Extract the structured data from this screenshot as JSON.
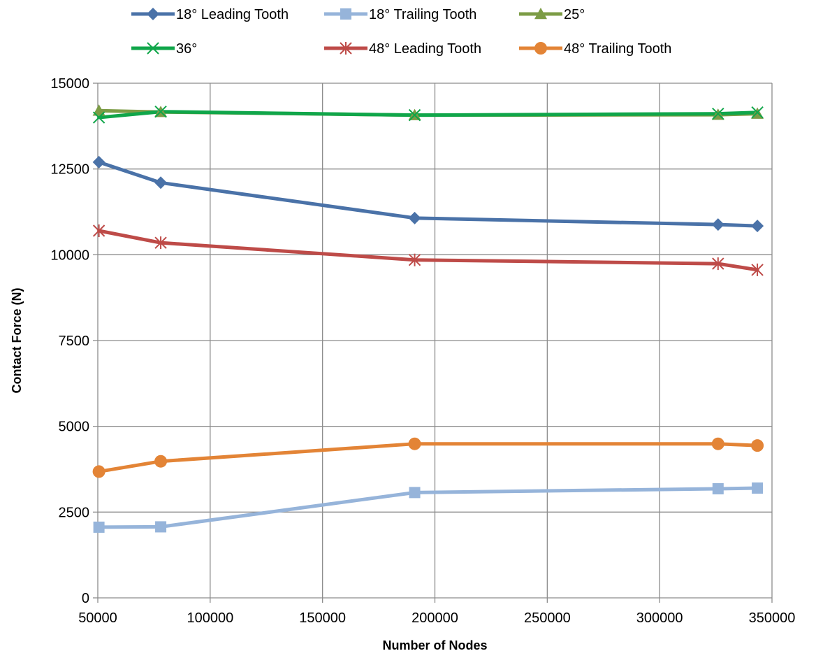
{
  "chart_data": {
    "type": "line",
    "xlabel": "Number of Nodes",
    "ylabel": "Contact Force (N)",
    "xlim": [
      50000,
      350000
    ],
    "ylim": [
      0,
      15000
    ],
    "xticks": [
      50000,
      100000,
      150000,
      200000,
      250000,
      300000,
      350000
    ],
    "yticks": [
      0,
      2500,
      5000,
      7500,
      10000,
      12500,
      15000
    ],
    "xtick_labels": [
      "50000",
      "100000",
      "150000",
      "200000",
      "250000",
      "300000",
      "350000"
    ],
    "ytick_labels": [
      "0",
      "2500",
      "5000",
      "7500",
      "10000",
      "12500",
      "15000"
    ],
    "grid": true,
    "legend_position": "top",
    "series": [
      {
        "name": "18° Leading Tooth",
        "color": "#4A72A8",
        "marker": "diamond",
        "x": [
          50500,
          78000,
          191000,
          326000,
          343500
        ],
        "y": [
          12700,
          12100,
          11070,
          10880,
          10840
        ]
      },
      {
        "name": "18° Trailing Tooth",
        "color": "#96B4DA",
        "marker": "square",
        "x": [
          50500,
          78000,
          191000,
          326000,
          343500
        ],
        "y": [
          2060,
          2070,
          3070,
          3180,
          3200
        ]
      },
      {
        "name": "25°",
        "color": "#7C9C45",
        "marker": "triangle",
        "x": [
          50500,
          78000,
          191000,
          326000,
          343500
        ],
        "y": [
          14200,
          14160,
          14070,
          14080,
          14110
        ]
      },
      {
        "name": "36°",
        "color": "#10A64A",
        "marker": "x",
        "x": [
          50500,
          78000,
          191000,
          326000,
          343500
        ],
        "y": [
          14000,
          14170,
          14070,
          14110,
          14150
        ]
      },
      {
        "name": "48° Leading Tooth",
        "color": "#BE4B48",
        "marker": "star",
        "x": [
          50500,
          78000,
          191000,
          326000,
          343500
        ],
        "y": [
          10700,
          10350,
          9850,
          9740,
          9560
        ]
      },
      {
        "name": "48° Trailing Tooth",
        "color": "#E38436",
        "marker": "circle",
        "x": [
          50500,
          78000,
          191000,
          326000,
          343500
        ],
        "y": [
          3680,
          3980,
          4490,
          4490,
          4440
        ]
      }
    ]
  }
}
